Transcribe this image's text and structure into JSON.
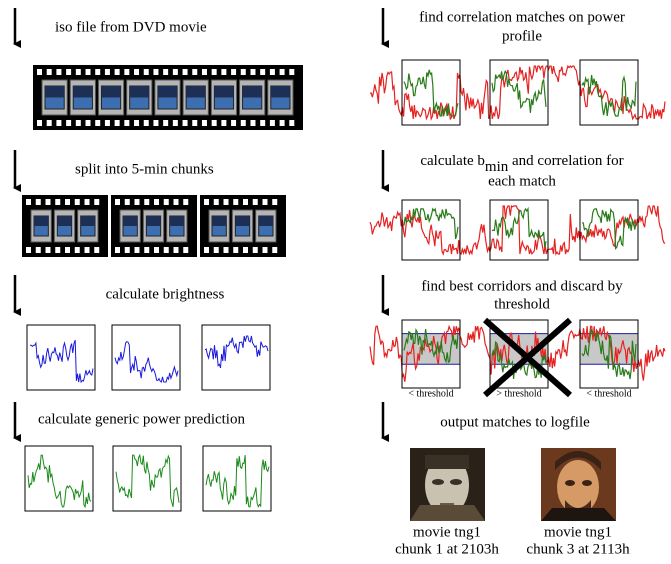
{
  "left_steps": [
    {
      "label": "iso file from DVD movie"
    },
    {
      "label": "split into 5-min chunks"
    },
    {
      "label": "calculate brightness"
    },
    {
      "label": "calculate generic power prediction"
    }
  ],
  "right_steps": [
    {
      "line1": "find correlation matches on power",
      "line2": "profile"
    },
    {
      "line1_pre": "calculate b",
      "line1_sub": "min",
      "line1_post": " and correlation for",
      "line2": "each match"
    },
    {
      "line1": "find best corridors and discard by",
      "line2": "threshold",
      "thresholds": [
        "< threshold",
        "> threshold",
        "< threshold"
      ]
    },
    {
      "line1": "output matches to logfile"
    }
  ],
  "matches": [
    {
      "title": "movie tng1",
      "chunk": "chunk 1 at 2103h"
    },
    {
      "title": "movie tng1",
      "chunk": "chunk 3 at 2113h"
    }
  ]
}
